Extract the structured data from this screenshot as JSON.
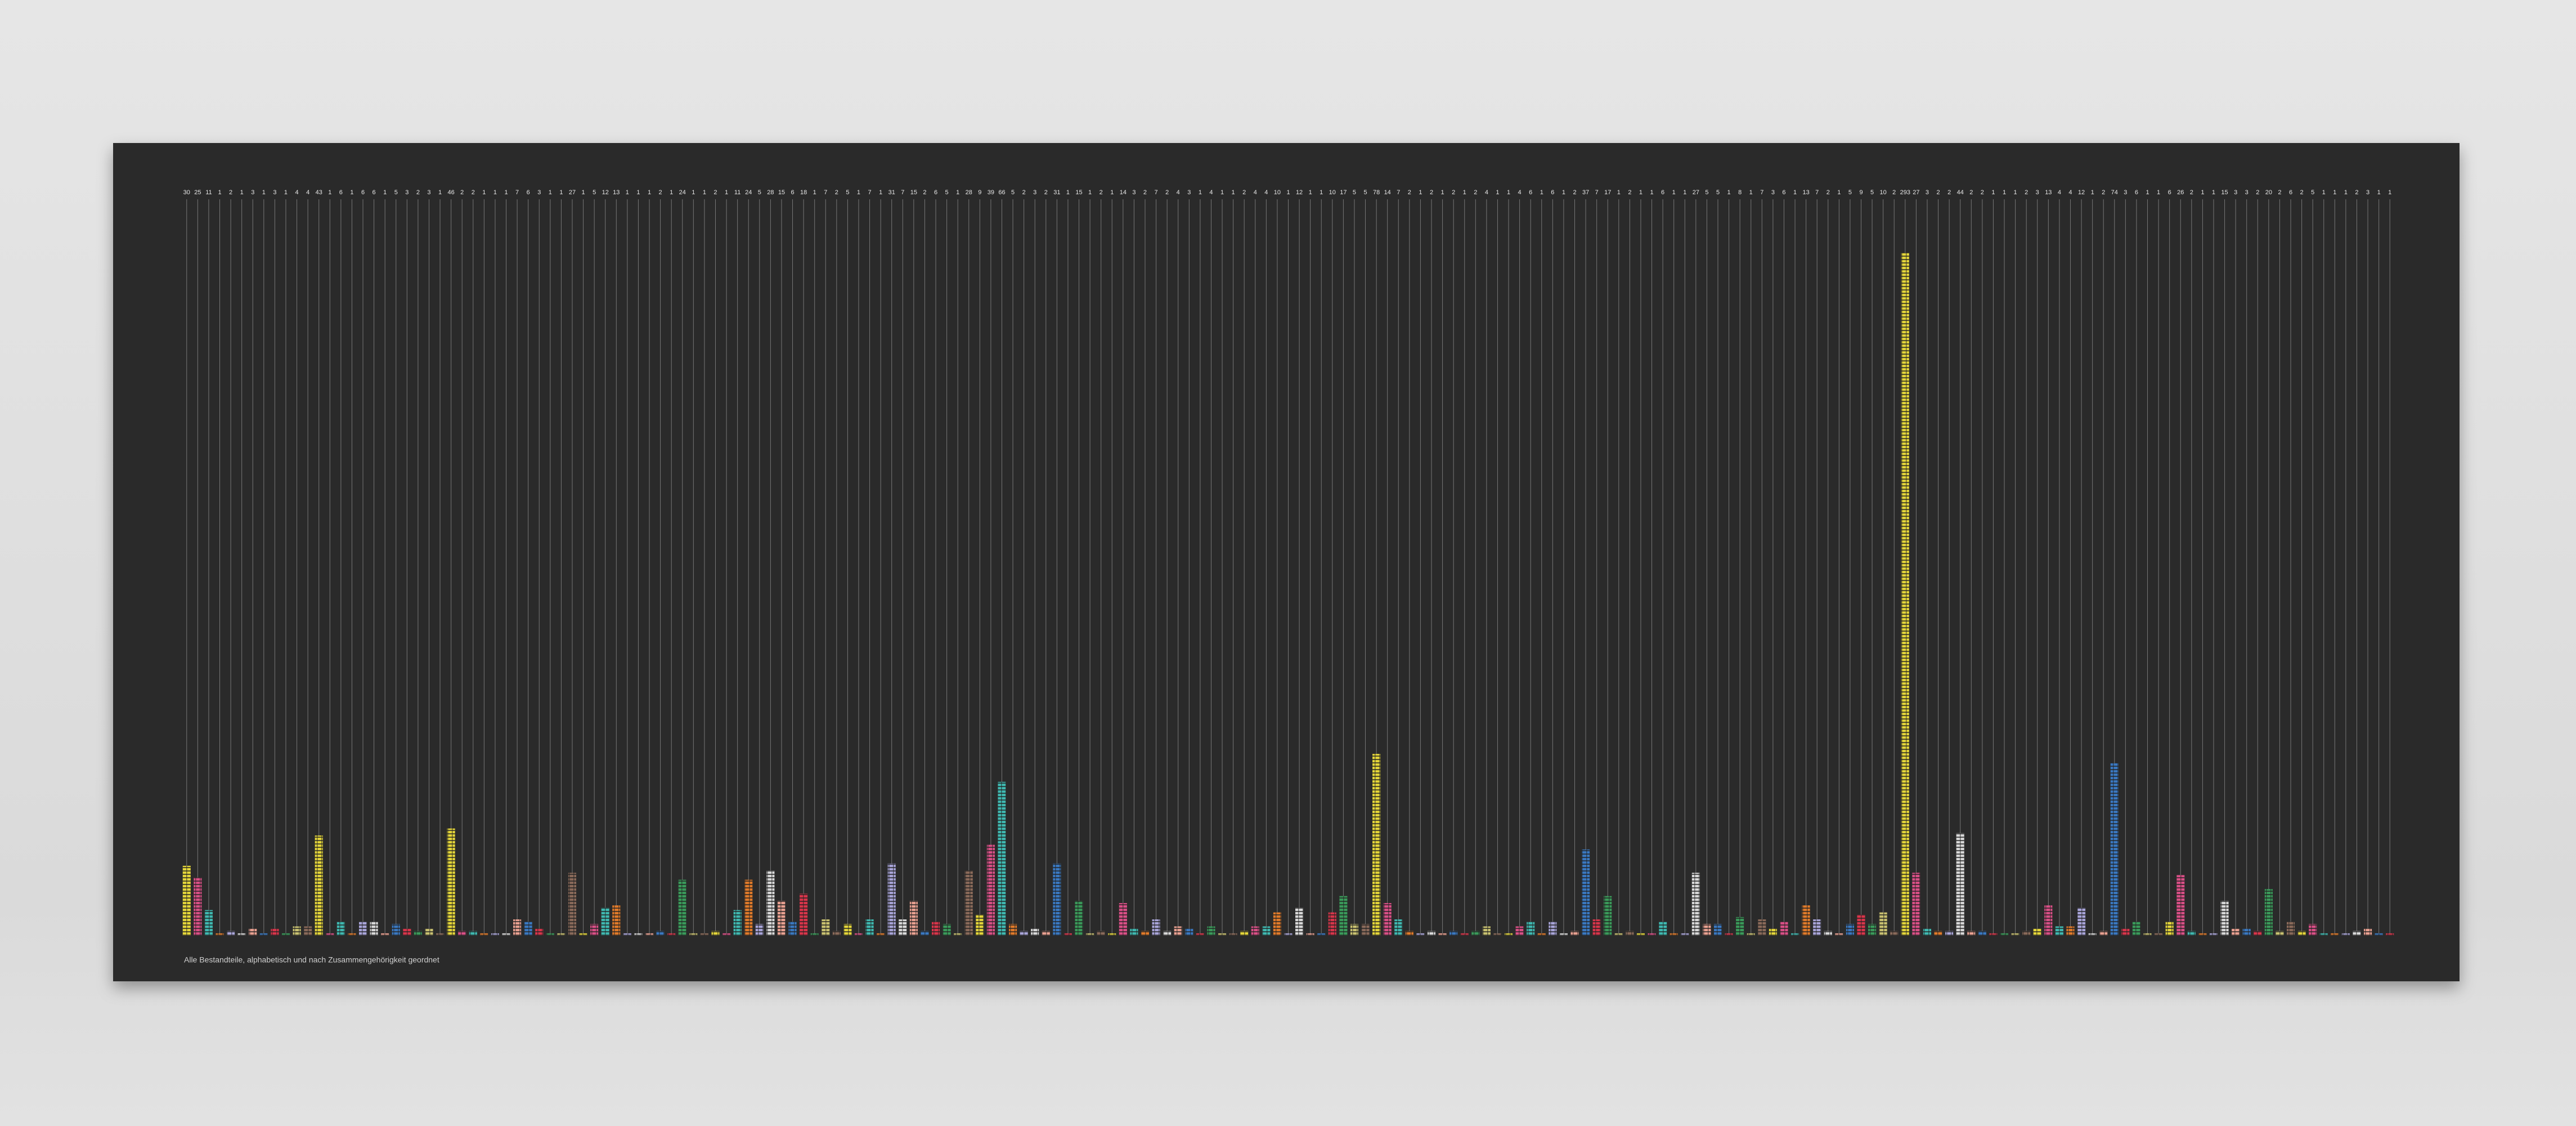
{
  "chart_data": {
    "type": "bar",
    "caption": "Alle Bestandteile, alphabetisch und nach Zusammengehörigkeit geordnet",
    "values": [
      30,
      25,
      11,
      1,
      2,
      1,
      3,
      1,
      3,
      1,
      4,
      4,
      43,
      1,
      6,
      1,
      6,
      6,
      1,
      5,
      3,
      2,
      3,
      1,
      46,
      2,
      2,
      1,
      1,
      1,
      7,
      6,
      3,
      1,
      1,
      27,
      1,
      5,
      12,
      13,
      1,
      1,
      1,
      2,
      1,
      24,
      1,
      1,
      2,
      1,
      11,
      24,
      5,
      28,
      15,
      6,
      18,
      1,
      7,
      2,
      5,
      1,
      7,
      1,
      31,
      7,
      15,
      2,
      6,
      5,
      1,
      28,
      9,
      39,
      66,
      5,
      2,
      3,
      2,
      31,
      1,
      15,
      1,
      2,
      1,
      14,
      3,
      2,
      7,
      2,
      4,
      3,
      1,
      4,
      1,
      1,
      2,
      4,
      4,
      10,
      1,
      12,
      1,
      1,
      10,
      17,
      5,
      5,
      78,
      14,
      7,
      2,
      1,
      2,
      1,
      2,
      1,
      2,
      4,
      1,
      1,
      4,
      6,
      1,
      6,
      1,
      2,
      37,
      7,
      17,
      1,
      2,
      1,
      1,
      6,
      1,
      1,
      27,
      5,
      5,
      1,
      8,
      1,
      7,
      3,
      6,
      1,
      13,
      7,
      2,
      1,
      5,
      9,
      5,
      10,
      2,
      293,
      27,
      3,
      2,
      2,
      44,
      2,
      2,
      1,
      1,
      1,
      2,
      3,
      13,
      4,
      4,
      12,
      1,
      2,
      74,
      3,
      6,
      1,
      1,
      6,
      26,
      2,
      1,
      1,
      15,
      3,
      3,
      2,
      20,
      2,
      6,
      2,
      5,
      1,
      1,
      1,
      2,
      3,
      1,
      1
    ],
    "colors": [
      "#e3d53a",
      "#d94f86",
      "#3fb8b0",
      "#e07a2a",
      "#a8a4d8",
      "#d8d8d8",
      "#e8a090",
      "#3a78c0",
      "#d8354a",
      "#3a9a5a",
      "#c8c070",
      "#8a6a5a"
    ],
    "ylim": [
      0,
      300
    ]
  }
}
